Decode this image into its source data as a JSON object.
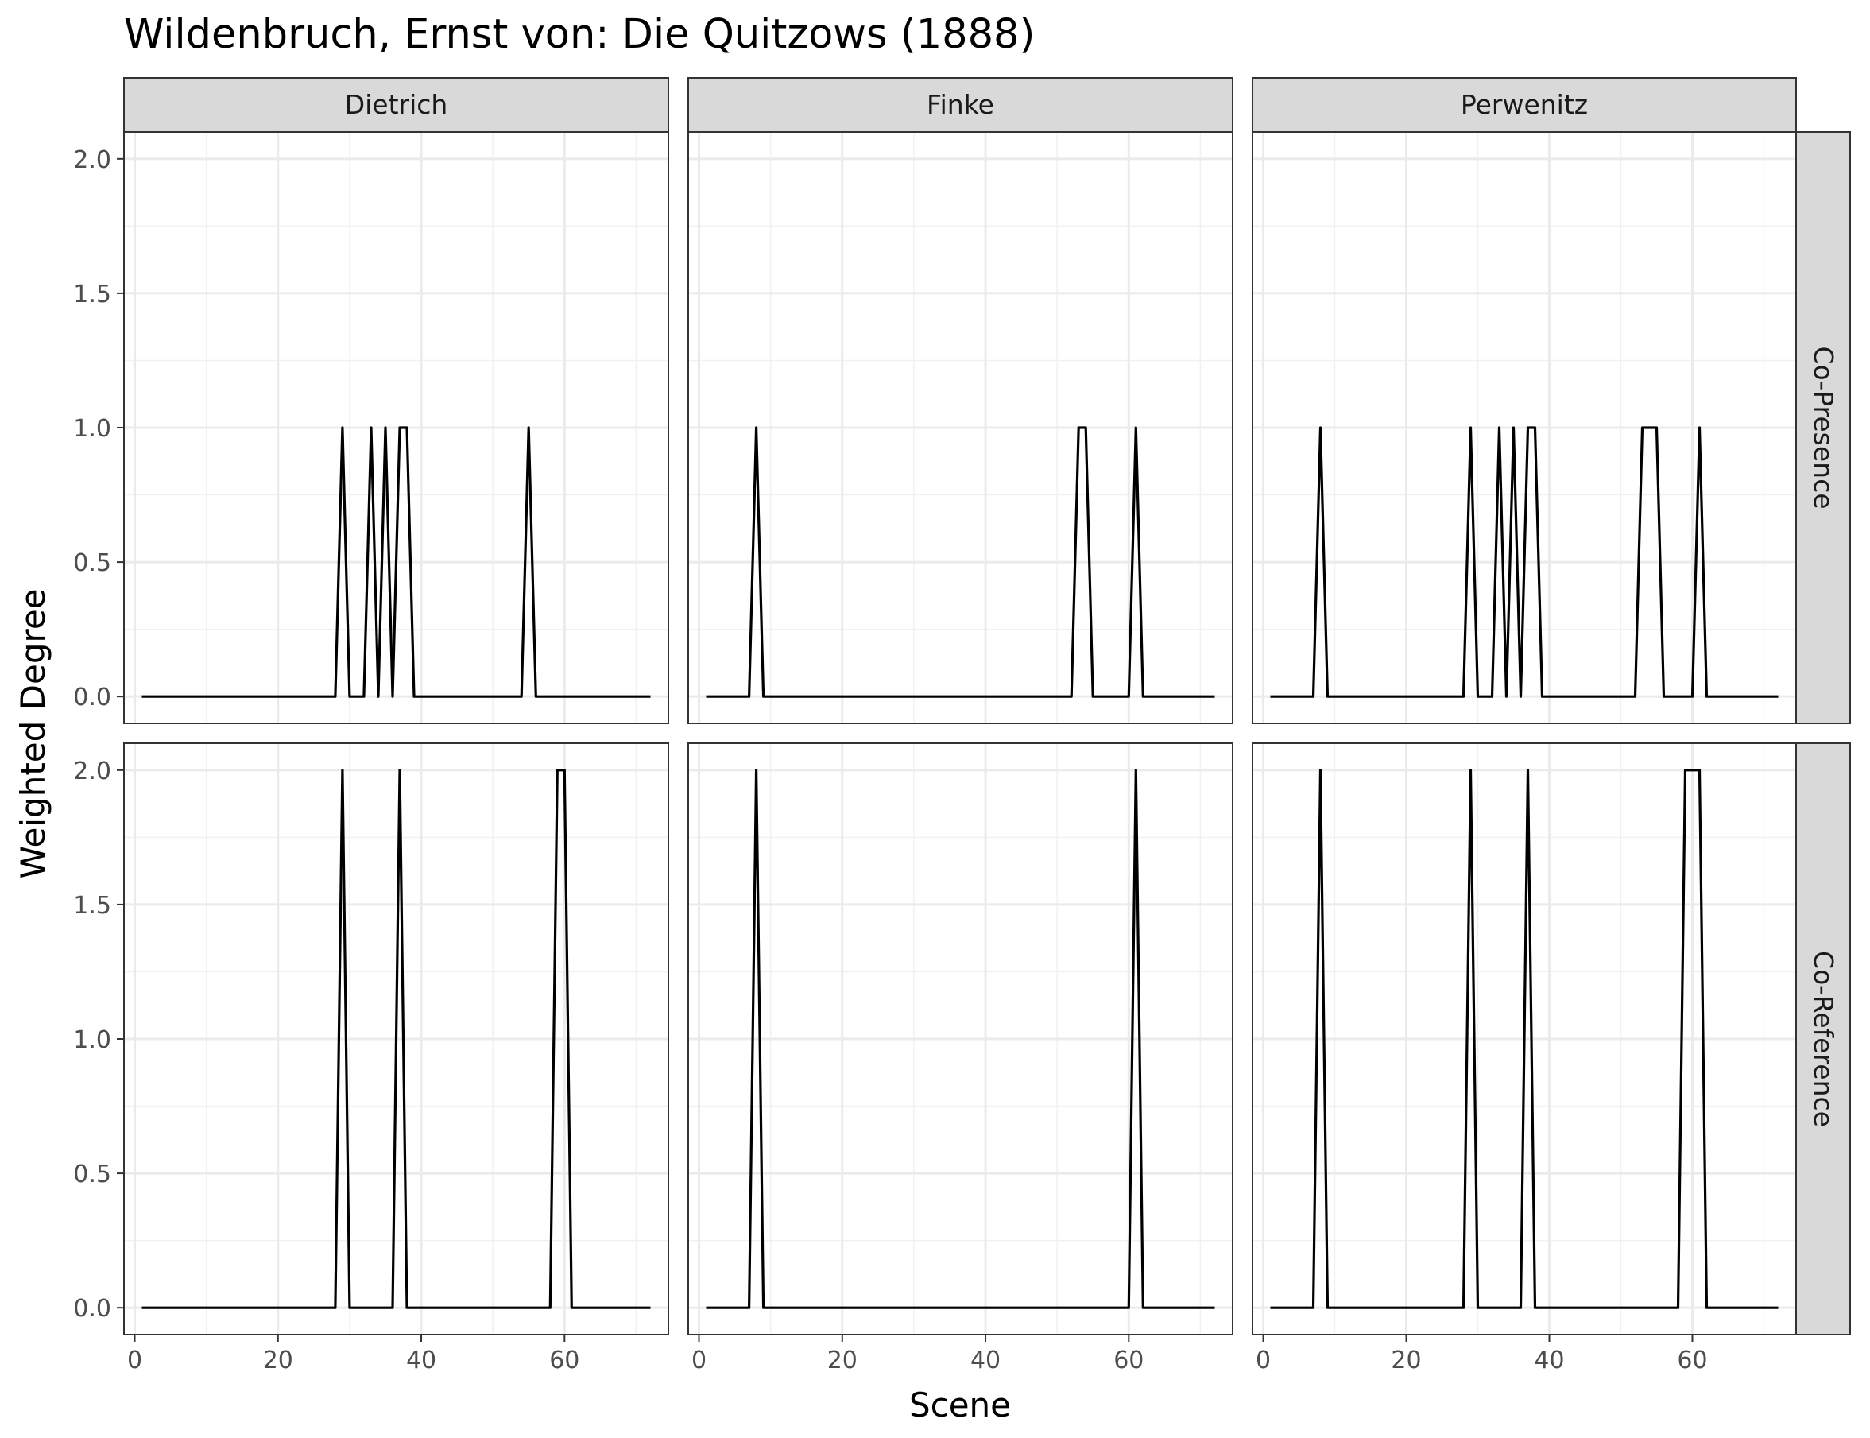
{
  "chart_data": {
    "type": "line",
    "title": "Wildenbruch, Ernst von: Die Quitzows (1888)",
    "xlabel": "Scene",
    "ylabel": "Weighted Degree",
    "xlim": [
      -1.5,
      74.5
    ],
    "x_ticks": [
      0,
      20,
      40,
      60
    ],
    "x_tick_labels": [
      "0",
      "20",
      "40",
      "60"
    ],
    "y_ticks": [
      0,
      0.5,
      1,
      1.5,
      2
    ],
    "y_tick_labels": [
      "0.0",
      "0.5",
      "1.0",
      "1.5",
      "2.0"
    ],
    "grid": true,
    "facet_columns": [
      "Dietrich",
      "Finke",
      "Perwenitz"
    ],
    "facet_rows": [
      "Co-Presence",
      "Co-Reference"
    ],
    "x_range": [
      1,
      72
    ],
    "panels": [
      {
        "column": "Dietrich",
        "row": "Co-Presence",
        "ylim": [
          -0.1,
          2.1
        ],
        "nonzero": [
          [
            29,
            1
          ],
          [
            33,
            1
          ],
          [
            35,
            1
          ],
          [
            37,
            1
          ],
          [
            38,
            1
          ],
          [
            55,
            1
          ]
        ]
      },
      {
        "column": "Finke",
        "row": "Co-Presence",
        "ylim": [
          -0.1,
          2.1
        ],
        "nonzero": [
          [
            8,
            1
          ],
          [
            53,
            1
          ],
          [
            54,
            1
          ],
          [
            61,
            1
          ]
        ]
      },
      {
        "column": "Perwenitz",
        "row": "Co-Presence",
        "ylim": [
          -0.1,
          2.1
        ],
        "nonzero": [
          [
            8,
            1
          ],
          [
            29,
            1
          ],
          [
            33,
            1
          ],
          [
            35,
            1
          ],
          [
            37,
            1
          ],
          [
            38,
            1
          ],
          [
            53,
            1
          ],
          [
            54,
            1
          ],
          [
            55,
            1
          ],
          [
            61,
            1
          ]
        ]
      },
      {
        "column": "Dietrich",
        "row": "Co-Reference",
        "ylim": [
          -0.1,
          2.1
        ],
        "nonzero": [
          [
            29,
            2
          ],
          [
            37,
            2
          ],
          [
            59,
            2
          ],
          [
            60,
            2
          ]
        ]
      },
      {
        "column": "Finke",
        "row": "Co-Reference",
        "ylim": [
          -0.1,
          2.1
        ],
        "nonzero": [
          [
            8,
            2
          ],
          [
            61,
            2
          ]
        ]
      },
      {
        "column": "Perwenitz",
        "row": "Co-Reference",
        "ylim": [
          -0.1,
          2.1
        ],
        "nonzero": [
          [
            8,
            2
          ],
          [
            29,
            2
          ],
          [
            37,
            2
          ],
          [
            59,
            2
          ],
          [
            60,
            2
          ],
          [
            61,
            2
          ]
        ]
      }
    ]
  }
}
